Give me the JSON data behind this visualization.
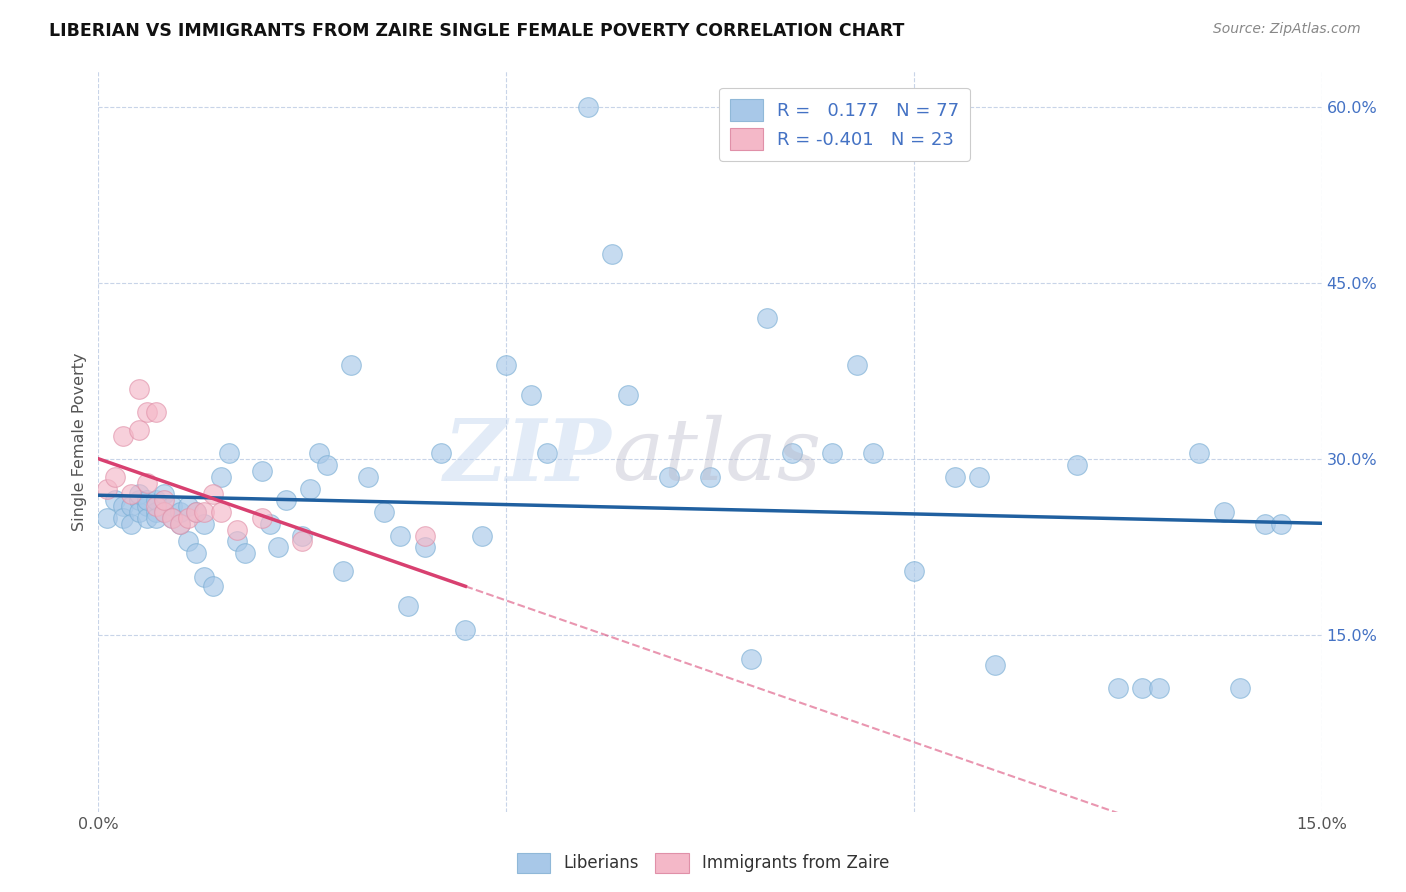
{
  "title": "LIBERIAN VS IMMIGRANTS FROM ZAIRE SINGLE FEMALE POVERTY CORRELATION CHART",
  "source": "Source: ZipAtlas.com",
  "ylabel": "Single Female Poverty",
  "legend_R1": "0.177",
  "legend_N1": "77",
  "legend_R2": "-0.401",
  "legend_N2": "23",
  "liberian_color": "#a8c8e8",
  "zaire_color": "#f4b8c8",
  "line_blue_color": "#2060a0",
  "line_pink_color": "#d84070",
  "background_color": "#ffffff",
  "grid_color": "#c8d4e8",
  "xlim": [
    0.0,
    0.15
  ],
  "ylim": [
    0.0,
    0.63
  ],
  "liberian_x": [
    0.001,
    0.002,
    0.003,
    0.003,
    0.004,
    0.004,
    0.005,
    0.005,
    0.005,
    0.006,
    0.006,
    0.006,
    0.007,
    0.007,
    0.007,
    0.008,
    0.008,
    0.009,
    0.009,
    0.01,
    0.01,
    0.011,
    0.011,
    0.012,
    0.012,
    0.013,
    0.013,
    0.014,
    0.015,
    0.016,
    0.017,
    0.018,
    0.02,
    0.021,
    0.022,
    0.023,
    0.025,
    0.026,
    0.027,
    0.028,
    0.03,
    0.031,
    0.033,
    0.035,
    0.037,
    0.038,
    0.04,
    0.042,
    0.045,
    0.047,
    0.05,
    0.053,
    0.055,
    0.06,
    0.063,
    0.065,
    0.07,
    0.075,
    0.08,
    0.082,
    0.085,
    0.09,
    0.093,
    0.095,
    0.1,
    0.105,
    0.108,
    0.11,
    0.12,
    0.125,
    0.128,
    0.13,
    0.135,
    0.138,
    0.14,
    0.143,
    0.145
  ],
  "liberian_y": [
    0.25,
    0.265,
    0.26,
    0.25,
    0.26,
    0.245,
    0.265,
    0.255,
    0.27,
    0.26,
    0.25,
    0.265,
    0.255,
    0.265,
    0.25,
    0.27,
    0.255,
    0.26,
    0.25,
    0.245,
    0.255,
    0.26,
    0.23,
    0.22,
    0.255,
    0.245,
    0.2,
    0.192,
    0.285,
    0.305,
    0.23,
    0.22,
    0.29,
    0.245,
    0.225,
    0.265,
    0.235,
    0.275,
    0.305,
    0.295,
    0.205,
    0.38,
    0.285,
    0.255,
    0.235,
    0.175,
    0.225,
    0.305,
    0.155,
    0.235,
    0.38,
    0.355,
    0.305,
    0.6,
    0.475,
    0.355,
    0.285,
    0.285,
    0.13,
    0.42,
    0.305,
    0.305,
    0.38,
    0.305,
    0.205,
    0.285,
    0.285,
    0.125,
    0.295,
    0.105,
    0.105,
    0.105,
    0.305,
    0.255,
    0.105,
    0.245,
    0.245
  ],
  "zaire_x": [
    0.001,
    0.002,
    0.003,
    0.004,
    0.005,
    0.005,
    0.006,
    0.006,
    0.007,
    0.007,
    0.008,
    0.008,
    0.009,
    0.01,
    0.011,
    0.012,
    0.013,
    0.014,
    0.015,
    0.017,
    0.02,
    0.025,
    0.04
  ],
  "zaire_y": [
    0.275,
    0.285,
    0.32,
    0.27,
    0.36,
    0.325,
    0.34,
    0.28,
    0.26,
    0.34,
    0.255,
    0.265,
    0.25,
    0.245,
    0.25,
    0.255,
    0.255,
    0.27,
    0.255,
    0.24,
    0.25,
    0.23,
    0.235
  ]
}
